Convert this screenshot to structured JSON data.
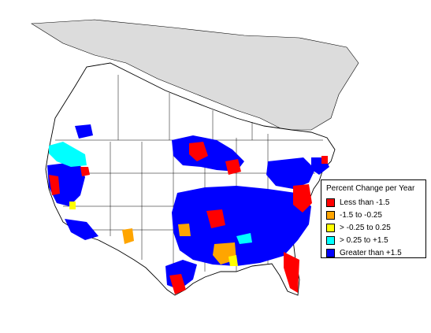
{
  "map": {
    "colors": {
      "water": "#ffffff",
      "land": "#ffffff",
      "no_data": "#dcdcdc",
      "outline": "#000000"
    }
  },
  "legend": {
    "title": "Percent Change per Year",
    "items": [
      {
        "label": "Less than -1.5",
        "color": "#ff0000"
      },
      {
        "label": "-1.5 to -0.25",
        "color": "#ffa500"
      },
      {
        "label": "> -0.25 to 0.25",
        "color": "#ffff00"
      },
      {
        "label": "> 0.25 to +1.5",
        "color": "#00ffff"
      },
      {
        "label": "Greater than +1.5",
        "color": "#0000ff"
      }
    ]
  }
}
